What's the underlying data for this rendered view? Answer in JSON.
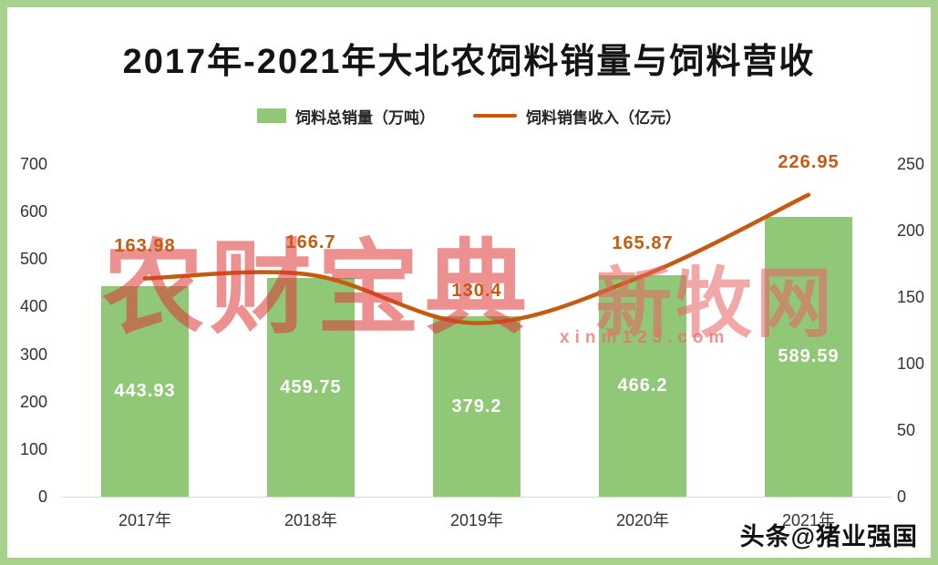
{
  "title": "2017年-2021年大北农饲料销量与饲料营收",
  "legend": {
    "bar_label": "饲料总销量（万吨）",
    "line_label": "饲料销售收入（亿元）"
  },
  "chart_data": {
    "type": "bar+line",
    "title": "2017年-2021年大北农饲料销量与饲料营收",
    "categories": [
      "2017年",
      "2018年",
      "2019年",
      "2020年",
      "2021年"
    ],
    "series": [
      {
        "name": "饲料总销量（万吨）",
        "type": "bar",
        "axis": "left",
        "color": "#90c878",
        "values": [
          443.93,
          459.75,
          379.2,
          466.2,
          589.59
        ],
        "labels": [
          "443.93",
          "459.75",
          "379.2",
          "466.2",
          "589.59"
        ]
      },
      {
        "name": "饲料销售收入（亿元）",
        "type": "line",
        "axis": "right",
        "color": "#c55a11",
        "values": [
          163.98,
          166.7,
          130.4,
          165.87,
          226.95
        ],
        "labels": [
          "163.98",
          "166.7",
          "130.4",
          "165.87",
          "226.95"
        ]
      }
    ],
    "left_axis": {
      "min": 0,
      "max": 700,
      "ticks": [
        700,
        600,
        500,
        400,
        300,
        200,
        100,
        0
      ]
    },
    "right_axis": {
      "min": 0,
      "max": 250,
      "ticks": [
        250,
        200,
        150,
        100,
        50,
        0
      ]
    },
    "grid": false,
    "legend_position": "top"
  },
  "watermarks": {
    "left": "农财宝典",
    "right": "新牧网",
    "url": "xinm123.com"
  },
  "footer": {
    "credit": "头条@猪业强国"
  },
  "colors": {
    "frame": "#a9d18e",
    "bar": "#90c878",
    "line": "#c55a11",
    "watermark_red": "#de3434"
  }
}
